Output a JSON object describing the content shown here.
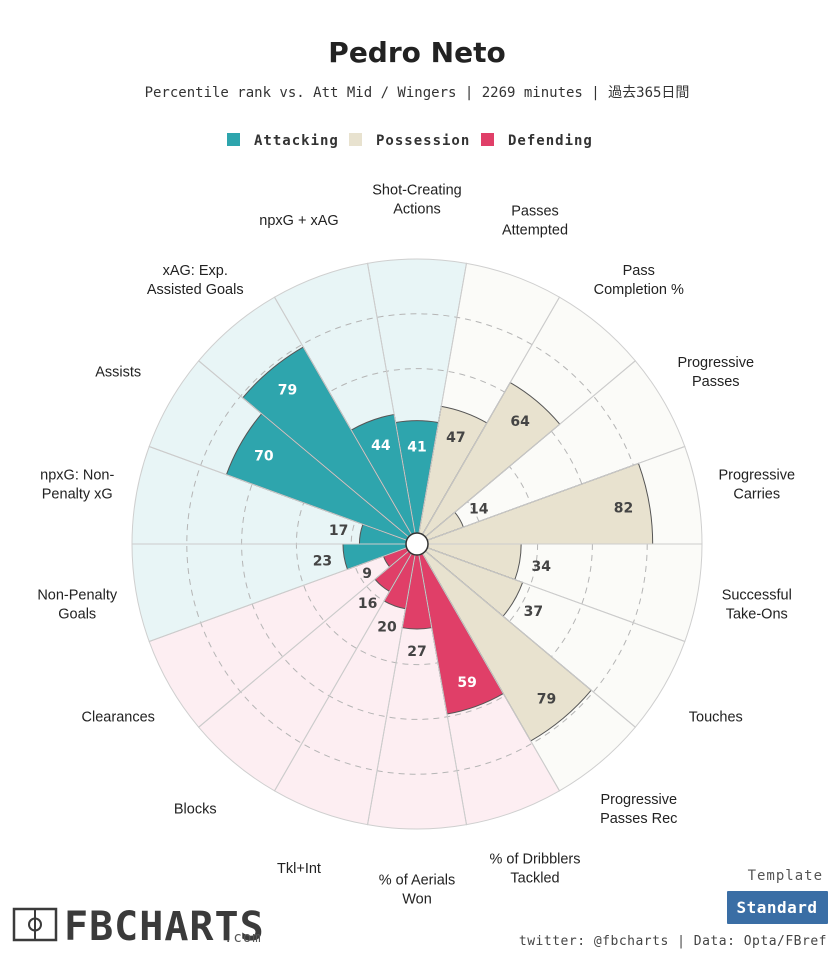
{
  "page": {
    "title": "Pedro Neto",
    "subtitle": "Percentile rank vs. Att Mid / Wingers | 2269 minutes | 過去365日間",
    "template_label": "Template",
    "template_button": "Standard",
    "footer_credit": "twitter: @fbcharts | Data: Opta/FBref",
    "logo_text": "FBCHARTS",
    "logo_suffix": ".com"
  },
  "legend": [
    {
      "name": "Attacking",
      "color": "#2ea5ad"
    },
    {
      "name": "Possession",
      "color": "#e8e2cf"
    },
    {
      "name": "Defending",
      "color": "#e03f68"
    }
  ],
  "colors": {
    "attacking_bg": "#e8f5f6",
    "possession_bg": "#fbfbf8",
    "defending_bg": "#fdeef2",
    "template_button": "#3a6ea5"
  },
  "chart_data": {
    "type": "polar-bar",
    "rlim": [
      0,
      100
    ],
    "grid_levels": [
      20,
      40,
      60,
      80
    ],
    "categories": [
      {
        "label": "Shot-Creating\nActions",
        "group": "Attacking",
        "value": 41
      },
      {
        "label": "Passes\nAttempted",
        "group": "Possession",
        "value": 47
      },
      {
        "label": "Pass\nCompletion %",
        "group": "Possession",
        "value": 64
      },
      {
        "label": "Progressive\nPasses",
        "group": "Possession",
        "value": 14
      },
      {
        "label": "Progressive\nCarries",
        "group": "Possession",
        "value": 82
      },
      {
        "label": "Successful\nTake-Ons",
        "group": "Possession",
        "value": 34
      },
      {
        "label": "Touches",
        "group": "Possession",
        "value": 37
      },
      {
        "label": "Progressive\nPasses Rec",
        "group": "Possession",
        "value": 79
      },
      {
        "label": "% of Dribblers\nTackled",
        "group": "Defending",
        "value": 59
      },
      {
        "label": "% of Aerials\nWon",
        "group": "Defending",
        "value": 27
      },
      {
        "label": "Tkl+Int",
        "group": "Defending",
        "value": 20
      },
      {
        "label": "Blocks",
        "group": "Defending",
        "value": 16
      },
      {
        "label": "Clearances",
        "group": "Defending",
        "value": 9
      },
      {
        "label": "Non-Penalty\nGoals",
        "group": "Attacking",
        "value": 23
      },
      {
        "label": "npxG: Non-\nPenalty xG",
        "group": "Attacking",
        "value": 17
      },
      {
        "label": "Assists",
        "group": "Attacking",
        "value": 70
      },
      {
        "label": "xAG: Exp.\nAssisted Goals",
        "group": "Attacking",
        "value": 79
      },
      {
        "label": "npxG + xAG",
        "group": "Attacking",
        "value": 44
      }
    ]
  }
}
